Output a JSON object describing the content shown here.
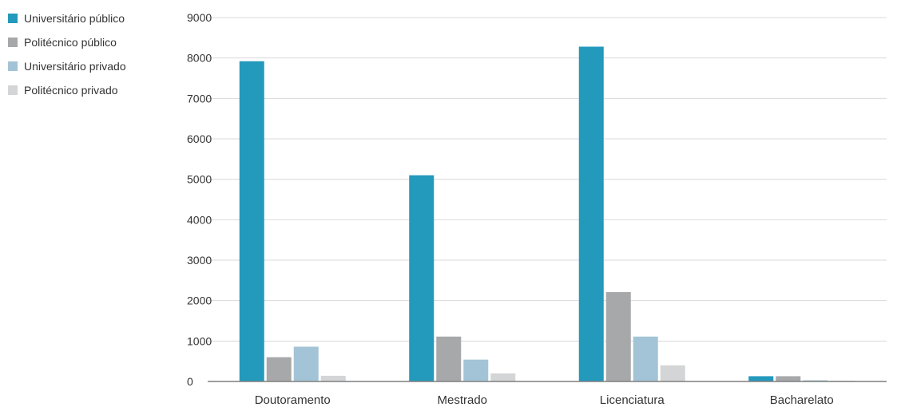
{
  "chart_data": {
    "type": "bar",
    "categories": [
      "Doutoramento",
      "Mestrado",
      "Licenciatura",
      "Bacharelato"
    ],
    "series": [
      {
        "name": "Universitário público",
        "color": "#2399BC",
        "values": [
          7920,
          5100,
          8280,
          130
        ]
      },
      {
        "name": "Politécnico público",
        "color": "#A7A8AA",
        "values": [
          600,
          1110,
          2210,
          130
        ]
      },
      {
        "name": "Universitário privado",
        "color": "#A3C4D6",
        "values": [
          860,
          540,
          1110,
          30
        ]
      },
      {
        "name": "Politécnico privado",
        "color": "#D4D5D6",
        "values": [
          140,
          200,
          400,
          20
        ]
      }
    ],
    "title": "",
    "xlabel": "",
    "ylabel": "",
    "ylim": [
      0,
      9000
    ],
    "yticks": [
      0,
      1000,
      2000,
      3000,
      4000,
      5000,
      6000,
      7000,
      8000,
      9000
    ],
    "grid": true,
    "legend_position": "top-left"
  }
}
